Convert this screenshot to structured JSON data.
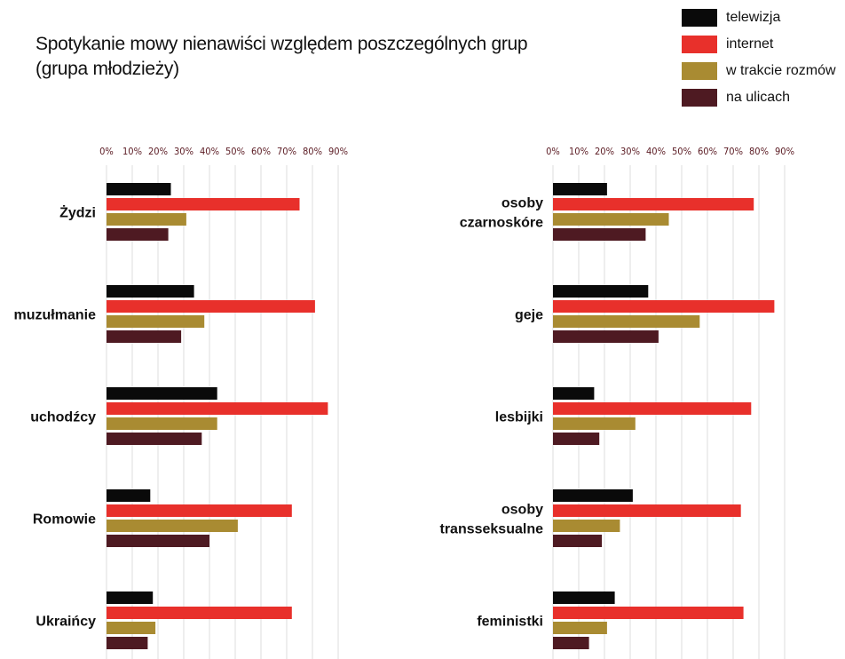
{
  "title_lines": [
    "Spotykanie mowy nienawiści względem poszczególnych grup",
    "(grupa młodzieży)"
  ],
  "legend": [
    {
      "name": "telewizja",
      "color": "#0a0a0a"
    },
    {
      "name": "internet",
      "color": "#e8302b"
    },
    {
      "name": "w trakcie rozmów",
      "color": "#a98b32"
    },
    {
      "name": "na ulicach",
      "color": "#4e1a22"
    }
  ],
  "chart_data": [
    {
      "type": "bar",
      "orientation": "horizontal",
      "x_ticks": [
        "0%",
        "10%",
        "20%",
        "30%",
        "40%",
        "50%",
        "60%",
        "70%",
        "80%",
        "90%"
      ],
      "xlim": [
        0,
        90
      ],
      "grid": true,
      "categories": [
        [
          "Żydzi"
        ],
        [
          "muzułmanie"
        ],
        [
          "uchodźcy"
        ],
        [
          "Romowie"
        ],
        [
          "Ukraińcy"
        ]
      ],
      "series": [
        {
          "name": "telewizja",
          "values": [
            25,
            34,
            43,
            17,
            18
          ]
        },
        {
          "name": "internet",
          "values": [
            75,
            81,
            86,
            72,
            72
          ]
        },
        {
          "name": "w trakcie rozmów",
          "values": [
            31,
            38,
            43,
            51,
            19
          ]
        },
        {
          "name": "na ulicach",
          "values": [
            24,
            29,
            37,
            40,
            16
          ]
        }
      ]
    },
    {
      "type": "bar",
      "orientation": "horizontal",
      "x_ticks": [
        "0%",
        "10%",
        "20%",
        "30%",
        "40%",
        "50%",
        "60%",
        "70%",
        "80%",
        "90%"
      ],
      "xlim": [
        0,
        90
      ],
      "grid": true,
      "categories": [
        [
          "osoby",
          "czarnoskóre"
        ],
        [
          "geje"
        ],
        [
          "lesbijki"
        ],
        [
          "osoby",
          "transseksualne"
        ],
        [
          "feministki"
        ]
      ],
      "series": [
        {
          "name": "telewizja",
          "values": [
            21,
            37,
            16,
            31,
            24
          ]
        },
        {
          "name": "internet",
          "values": [
            78,
            86,
            77,
            73,
            74
          ]
        },
        {
          "name": "w trakcie rozmów",
          "values": [
            45,
            57,
            32,
            26,
            21
          ]
        },
        {
          "name": "na ulicach",
          "values": [
            36,
            41,
            18,
            19,
            14
          ]
        }
      ]
    }
  ]
}
